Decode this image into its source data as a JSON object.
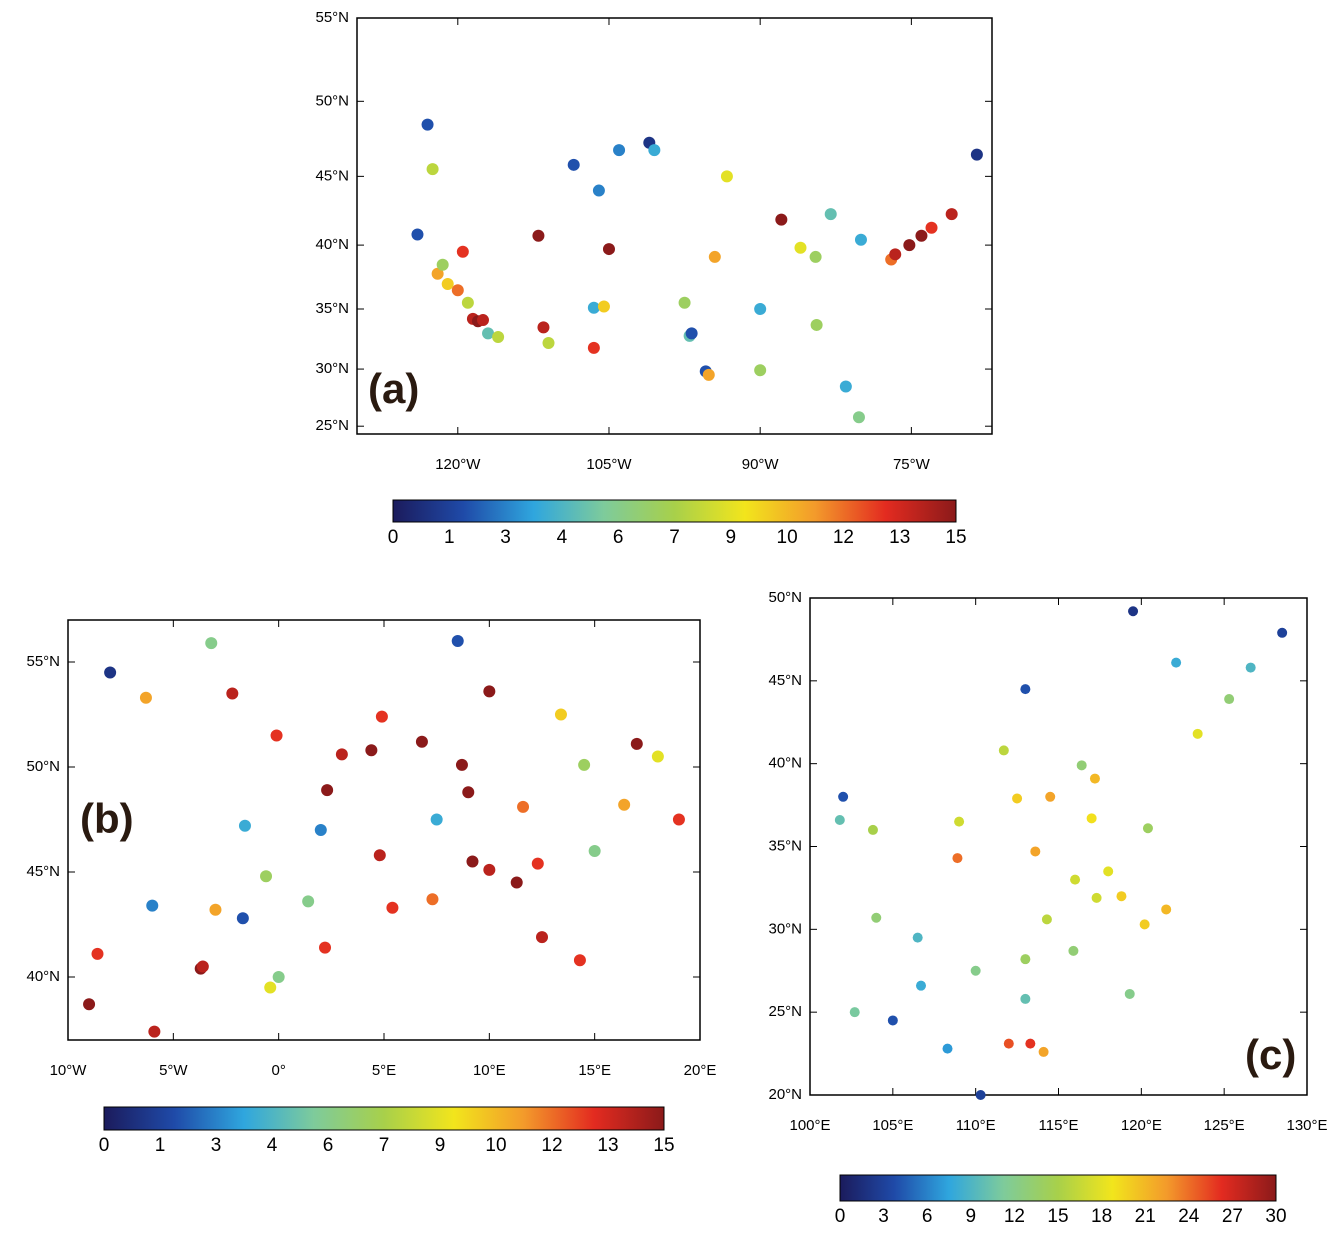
{
  "panels": [
    {
      "label": "(a)",
      "projection": "mercator",
      "xlim": [
        -130,
        -67
      ],
      "ylim": [
        24.3,
        55
      ],
      "xticks": [
        {
          "value": -120,
          "label": "120°W"
        },
        {
          "value": -105,
          "label": "105°W"
        },
        {
          "value": -90,
          "label": "90°W"
        },
        {
          "value": -75,
          "label": "75°W"
        }
      ],
      "yticks": [
        {
          "value": 25,
          "label": "25°N"
        },
        {
          "value": 30,
          "label": "30°N"
        },
        {
          "value": 35,
          "label": "35°N"
        },
        {
          "value": 40,
          "label": "40°N"
        },
        {
          "value": 45,
          "label": "45°N"
        },
        {
          "value": 50,
          "label": "50°N"
        },
        {
          "value": 55,
          "label": "55°N"
        }
      ],
      "colorbar": {
        "range": [
          0,
          15
        ],
        "ticks": [
          0,
          1,
          3,
          4,
          6,
          7,
          9,
          10,
          12,
          13,
          15
        ],
        "colors": [
          "#1b1b5c",
          "#1f4aa8",
          "#2fa6de",
          "#7ecb9b",
          "#a8d04a",
          "#f2e51c",
          "#f39a2b",
          "#e32b20",
          "#8b1a1a"
        ]
      },
      "stations": {
        "lon": [
          -123,
          -122.5,
          -124,
          -122,
          -121.5,
          -121,
          -120,
          -119,
          -118.5,
          -118,
          -117.5,
          -117,
          -116,
          -119.5,
          -112,
          -111.5,
          -111,
          -106.5,
          -105,
          -106.5,
          -105.5,
          -108.5,
          -106,
          -104,
          -101,
          -100.5,
          -97,
          -96.8,
          -95.4,
          -95.1,
          -90,
          -87.9,
          -86,
          -83,
          -84.5,
          -80,
          -77,
          -76.6,
          -75.2,
          -74,
          -73,
          -71,
          -68.5,
          -80.2,
          -81.5,
          -84.4,
          -90,
          -93.3,
          -97.5,
          -94.5
        ],
        "lat": [
          48.5,
          45.5,
          40.8,
          37.8,
          38.5,
          37,
          36.5,
          35.5,
          34.2,
          34,
          34.1,
          33,
          32.7,
          39.5,
          40.7,
          33.5,
          32.2,
          31.8,
          39.7,
          35.1,
          35.2,
          45.8,
          44,
          46.8,
          47.3,
          46.8,
          32.8,
          33,
          29.8,
          29.5,
          29.9,
          41.9,
          39.8,
          42.3,
          39.1,
          40.4,
          38.9,
          39.3,
          40,
          40.7,
          41.3,
          42.3,
          46.5,
          25.8,
          28.5,
          33.7,
          35,
          45,
          35.5,
          39.1
        ],
        "values": [
          2,
          8,
          2,
          11,
          7,
          10,
          12,
          8,
          14,
          15,
          14,
          5,
          8,
          13,
          15,
          14,
          8,
          13,
          15,
          4,
          10,
          2,
          3,
          3,
          1,
          4,
          5,
          2,
          2,
          11,
          7,
          15,
          9,
          5,
          7,
          4,
          12,
          14,
          15,
          15,
          13,
          14,
          1,
          6,
          4,
          7,
          4,
          9,
          7,
          11
        ]
      }
    },
    {
      "label": "(b)",
      "projection": "equirectangular",
      "xlim": [
        -10,
        20
      ],
      "ylim": [
        37,
        57
      ],
      "xticks": [
        {
          "value": -10,
          "label": "10°W"
        },
        {
          "value": -5,
          "label": "5°W"
        },
        {
          "value": 0,
          "label": "0°"
        },
        {
          "value": 5,
          "label": "5°E"
        },
        {
          "value": 10,
          "label": "10°E"
        },
        {
          "value": 15,
          "label": "15°E"
        },
        {
          "value": 20,
          "label": "20°E"
        }
      ],
      "yticks": [
        {
          "value": 40,
          "label": "40°N"
        },
        {
          "value": 45,
          "label": "45°N"
        },
        {
          "value": 50,
          "label": "50°N"
        },
        {
          "value": 55,
          "label": "55°N"
        }
      ],
      "colorbar": {
        "range": [
          0,
          15
        ],
        "ticks": [
          0,
          1,
          3,
          4,
          6,
          7,
          9,
          10,
          12,
          13,
          15
        ],
        "colors": [
          "#1b1b5c",
          "#1f4aa8",
          "#2fa6de",
          "#7ecb9b",
          "#a8d04a",
          "#f2e51c",
          "#f39a2b",
          "#e32b20",
          "#8b1a1a"
        ]
      },
      "stations": {
        "lon": [
          -9,
          -8.6,
          -3.7,
          -3.6,
          -0.4,
          2.2,
          -5.9,
          -6,
          -3,
          -1.7,
          0,
          2.3,
          4.8,
          5.4,
          7.3,
          1.4,
          -1.6,
          -0.6,
          3,
          4.4,
          4.9,
          6.8,
          8.7,
          9,
          11.6,
          13.4,
          10,
          9.2,
          11.3,
          10,
          12.3,
          12.5,
          14.3,
          16.4,
          17,
          14.5,
          -0.1,
          -2.2,
          -3.2,
          -6.3,
          -8,
          15,
          19,
          18,
          8.5,
          7.5,
          2
        ],
        "lat": [
          38.7,
          41.1,
          40.4,
          40.5,
          39.5,
          41.4,
          37.4,
          43.4,
          43.2,
          42.8,
          40,
          48.9,
          45.8,
          43.3,
          43.7,
          43.6,
          47.2,
          44.8,
          50.6,
          50.8,
          52.4,
          51.2,
          50.1,
          48.8,
          48.1,
          52.5,
          53.6,
          45.5,
          44.5,
          45.1,
          45.4,
          41.9,
          40.8,
          48.2,
          51.1,
          50.1,
          51.5,
          53.5,
          55.9,
          53.3,
          54.5,
          46,
          47.5,
          50.5,
          56,
          47.5,
          47
        ],
        "values": [
          15,
          13,
          15,
          14,
          9,
          13,
          14,
          3,
          11,
          2,
          6,
          15,
          14,
          13,
          12,
          6,
          4,
          7,
          14,
          15,
          13,
          15,
          15,
          15,
          12,
          10,
          15,
          15,
          15,
          14,
          13,
          14,
          13,
          11,
          15,
          7,
          13,
          14,
          6,
          11,
          1,
          6,
          13,
          9,
          2,
          4,
          3
        ]
      }
    },
    {
      "label": "(c)",
      "projection": "equirectangular",
      "xlim": [
        100,
        130
      ],
      "ylim": [
        20,
        50
      ],
      "xticks": [
        {
          "value": 100,
          "label": "100°E"
        },
        {
          "value": 105,
          "label": "105°E"
        },
        {
          "value": 110,
          "label": "110°E"
        },
        {
          "value": 115,
          "label": "115°E"
        },
        {
          "value": 120,
          "label": "120°E"
        },
        {
          "value": 125,
          "label": "125°E"
        },
        {
          "value": 130,
          "label": "130°E"
        }
      ],
      "yticks": [
        {
          "value": 20,
          "label": "20°N"
        },
        {
          "value": 25,
          "label": "25°N"
        },
        {
          "value": 30,
          "label": "30°N"
        },
        {
          "value": 35,
          "label": "35°N"
        },
        {
          "value": 40,
          "label": "40°N"
        },
        {
          "value": 45,
          "label": "45°N"
        },
        {
          "value": 50,
          "label": "50°N"
        }
      ],
      "colorbar": {
        "range": [
          0,
          30
        ],
        "ticks": [
          0,
          3,
          6,
          9,
          12,
          15,
          18,
          21,
          24,
          27,
          30
        ],
        "colors": [
          "#1b1b5c",
          "#1f4aa8",
          "#2fa6de",
          "#7ecb9b",
          "#a8d04a",
          "#f2e51c",
          "#f39a2b",
          "#e32b20",
          "#8b1a1a"
        ]
      },
      "stations": {
        "lon": [
          116.4,
          117.2,
          114.5,
          112.5,
          108.9,
          113.6,
          117,
          120.4,
          118.8,
          121.5,
          120.2,
          114.3,
          113,
          112,
          113.3,
          114.1,
          119.3,
          106.5,
          104,
          106.7,
          102.7,
          108.3,
          110.3,
          103.8,
          101.8,
          111.7,
          123.4,
          125.3,
          126.6,
          119.5,
          128.5,
          122.1,
          118,
          115.9,
          117.3,
          113,
          110,
          105,
          102,
          113,
          116,
          109
        ],
        "lat": [
          39.9,
          39.1,
          38,
          37.9,
          34.3,
          34.7,
          36.7,
          36.1,
          32,
          31.2,
          30.3,
          30.6,
          28.2,
          23.1,
          23.1,
          22.6,
          26.1,
          29.5,
          30.7,
          26.6,
          25,
          22.8,
          20,
          36,
          36.6,
          40.8,
          41.8,
          43.9,
          45.8,
          49.2,
          47.9,
          46.1,
          33.5,
          28.7,
          31.9,
          25.8,
          27.5,
          24.5,
          38,
          44.5,
          33,
          36.5
        ],
        "values": [
          13,
          21,
          22,
          20,
          24,
          22,
          19,
          14,
          20,
          21,
          20,
          16,
          14,
          25,
          26,
          22,
          12,
          9,
          13,
          8,
          11,
          7,
          3,
          15,
          10,
          16,
          18,
          13,
          9,
          2,
          3,
          8,
          18,
          13,
          17,
          10,
          12,
          4,
          4,
          4,
          17,
          17
        ]
      }
    }
  ]
}
